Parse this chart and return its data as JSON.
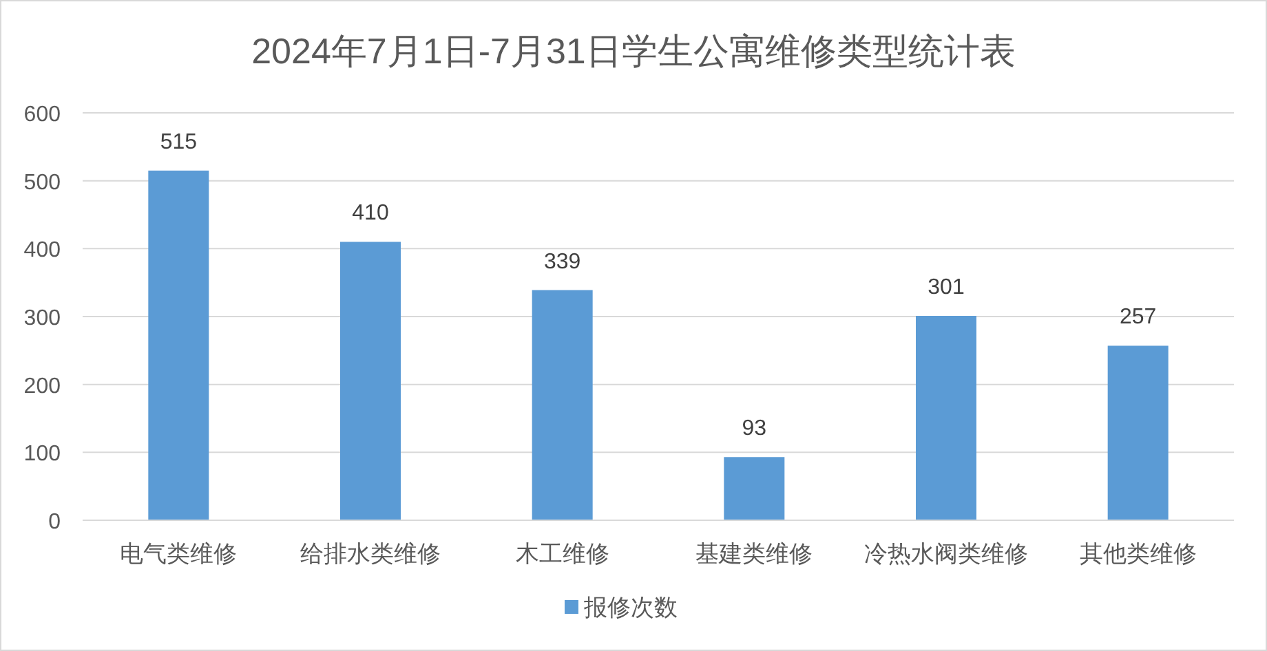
{
  "chart_data": {
    "type": "bar",
    "title": "2024年7月1日-7月31日学生公寓维修类型统计表",
    "categories": [
      "电气类维修",
      "给排水类维修",
      "木工维修",
      "基建类维修",
      "冷热水阀类维修",
      "其他类维修"
    ],
    "series": [
      {
        "name": "报修次数",
        "color": "#5b9bd5",
        "values": [
          515,
          410,
          339,
          93,
          301,
          257
        ]
      }
    ],
    "ylim": [
      0,
      600
    ],
    "yticks": [
      0,
      100,
      200,
      300,
      400,
      500,
      600
    ],
    "grid": "y",
    "legend": "bottom",
    "data_labels": true
  }
}
